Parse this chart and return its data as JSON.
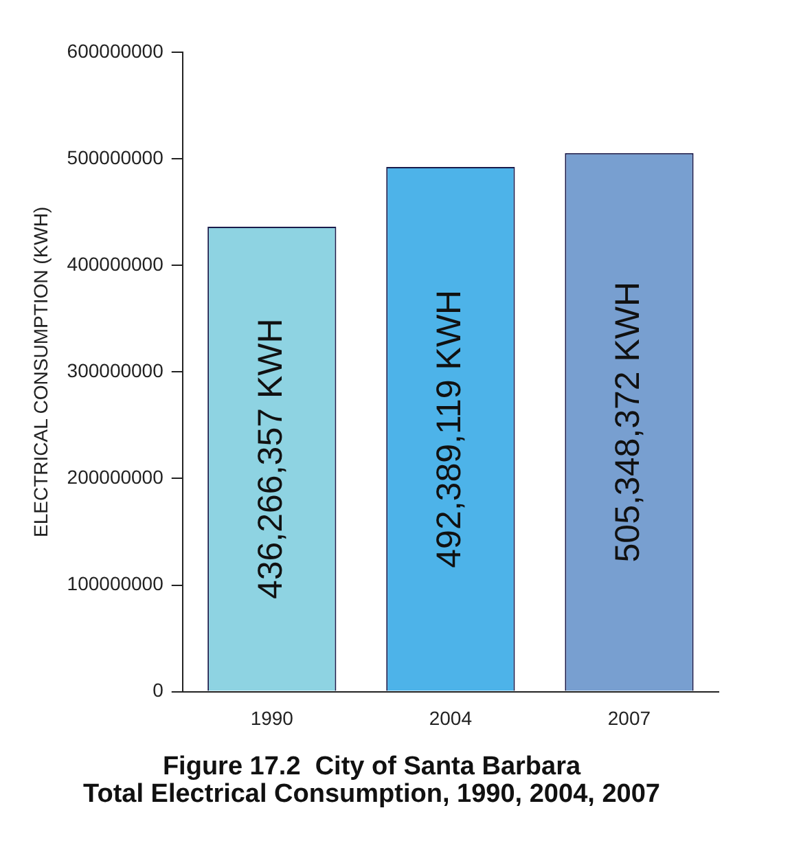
{
  "chart_data": {
    "type": "bar",
    "title": "Figure 17.2  City of Santa Barbara\nTotal Electrical Consumption, 1990, 2004, 2007",
    "ylabel": "ELECTRICAL CONSUMPTION (KWH)",
    "categories": [
      "1990",
      "2004",
      "2007"
    ],
    "values": [
      436266357,
      492389119,
      505348372
    ],
    "colors": [
      "#8ed3e2",
      "#4db3e9",
      "#789fd0"
    ],
    "value_labels": [
      "436,266,357 KWH",
      "492,389,119 KWH",
      "505,348,372 KWH"
    ],
    "ylim": [
      0,
      600000000
    ],
    "yticks": [
      0,
      100000000,
      200000000,
      300000000,
      400000000,
      500000000,
      600000000
    ],
    "grid": false,
    "legend": false
  }
}
